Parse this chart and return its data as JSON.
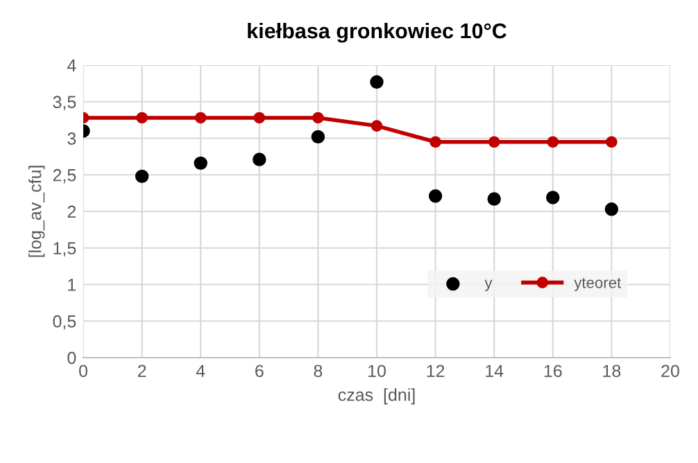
{
  "chart_data": {
    "type": "scatter",
    "title": "kiełbasa gronkowiec 10°C",
    "xlabel": "czas  [dni]",
    "ylabel": "[log_av_cfu]",
    "x": [
      0,
      2,
      4,
      6,
      8,
      10,
      12,
      14,
      16,
      18
    ],
    "series": [
      {
        "name": "y",
        "color": "#000000",
        "marker": "circle",
        "values": [
          3.1,
          2.48,
          2.66,
          2.71,
          3.02,
          3.77,
          2.21,
          2.17,
          2.19,
          2.03
        ]
      },
      {
        "name": "yteoret",
        "type": "line",
        "color": "#c00000",
        "marker": "circle",
        "values": [
          3.28,
          3.28,
          3.28,
          3.28,
          3.28,
          3.17,
          2.95,
          2.95,
          2.95,
          2.95
        ]
      }
    ],
    "xlim": [
      0,
      20
    ],
    "xticks": [
      0,
      2,
      4,
      6,
      8,
      10,
      12,
      14,
      16,
      18,
      20
    ],
    "ylim": [
      0,
      4
    ],
    "yticks": [
      0,
      {
        "value": 0.5,
        "label": "0,5"
      },
      1,
      {
        "value": 1.5,
        "label": "1,5"
      },
      2,
      {
        "value": 2.5,
        "label": "2,5"
      },
      3,
      {
        "value": 3.5,
        "label": "3,5"
      },
      4
    ],
    "grid": true,
    "legend": "bottom right"
  }
}
